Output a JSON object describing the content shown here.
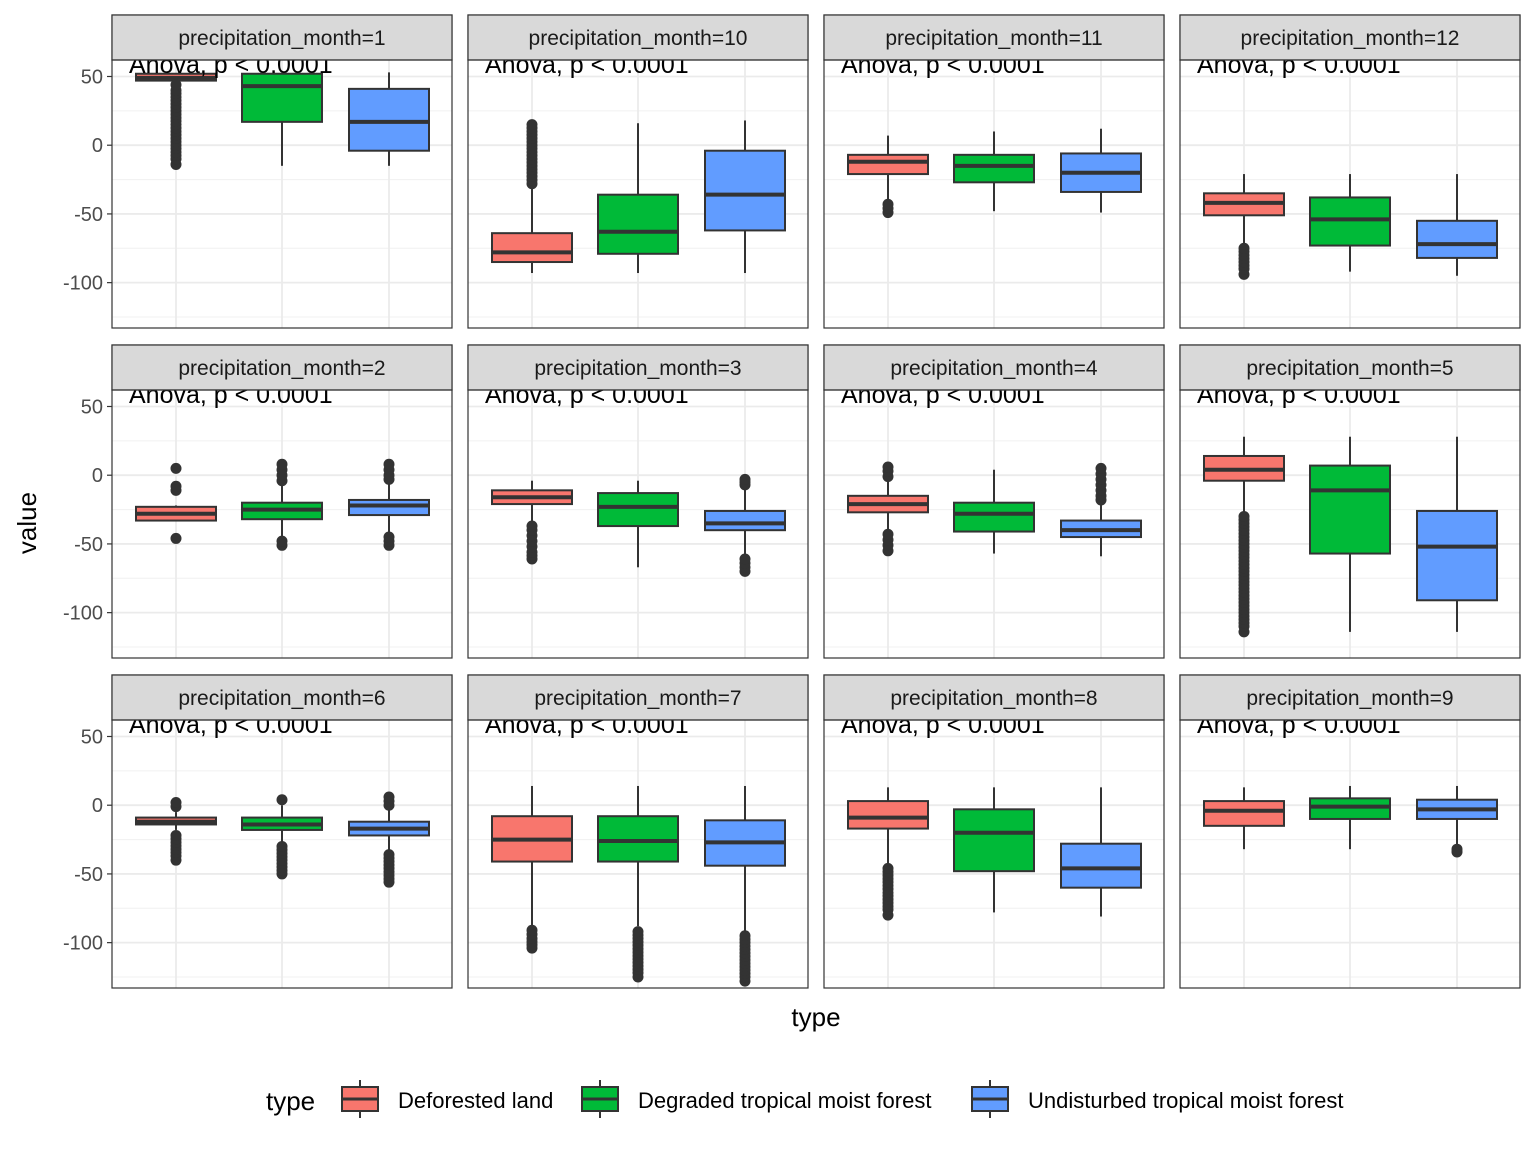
{
  "chart_data": {
    "type": "boxplot",
    "xlabel": "type",
    "ylabel": "value",
    "ylim": [
      -133,
      62
    ],
    "yticks": [
      50,
      0,
      -50,
      -100
    ],
    "x_tick_labels_shown": false,
    "grid": true,
    "annotation": "Anova, p < 0.0001",
    "legend": {
      "title": "type",
      "position": "bottom",
      "entries": [
        "Deforested land",
        "Degraded tropical moist forest",
        "Undisturbed tropical moist forest"
      ]
    },
    "series_colors": [
      "#F8766D",
      "#00BA38",
      "#619CFF"
    ],
    "facets": [
      {
        "label": "precipitation_month=1",
        "boxes": [
          {
            "type": "Deforested land",
            "whisker_low": 47,
            "q1": 47,
            "median": 49,
            "q3": 52,
            "whisker_high": 52,
            "outliers": [
              -14,
              -10,
              -5,
              0,
              5,
              10,
              15,
              20,
              25,
              30,
              35,
              40,
              44
            ]
          },
          {
            "type": "Degraded tropical moist forest",
            "whisker_low": -15,
            "q1": 17,
            "median": 43,
            "q3": 52,
            "whisker_high": 52,
            "outliers": []
          },
          {
            "type": "Undisturbed tropical moist forest",
            "whisker_low": -15,
            "q1": -4,
            "median": 17,
            "q3": 41,
            "whisker_high": 53,
            "outliers": []
          }
        ]
      },
      {
        "label": "precipitation_month=10",
        "boxes": [
          {
            "type": "Deforested land",
            "whisker_low": -93,
            "q1": -85,
            "median": -78,
            "q3": -64,
            "whisker_high": -29,
            "outliers": [
              -28,
              -20,
              -10,
              0,
              5,
              10,
              15
            ]
          },
          {
            "type": "Degraded tropical moist forest",
            "whisker_low": -93,
            "q1": -79,
            "median": -63,
            "q3": -36,
            "whisker_high": 16,
            "outliers": []
          },
          {
            "type": "Undisturbed tropical moist forest",
            "whisker_low": -93,
            "q1": -62,
            "median": -36,
            "q3": -4,
            "whisker_high": 18,
            "outliers": []
          }
        ]
      },
      {
        "label": "precipitation_month=11",
        "boxes": [
          {
            "type": "Deforested land",
            "whisker_low": -40,
            "q1": -21,
            "median": -12,
            "q3": -7,
            "whisker_high": 7,
            "outliers": [
              -43,
              -46,
              -49
            ]
          },
          {
            "type": "Degraded tropical moist forest",
            "whisker_low": -48,
            "q1": -27,
            "median": -15,
            "q3": -7,
            "whisker_high": 10,
            "outliers": []
          },
          {
            "type": "Undisturbed tropical moist forest",
            "whisker_low": -49,
            "q1": -34,
            "median": -20,
            "q3": -6,
            "whisker_high": 12,
            "outliers": []
          }
        ]
      },
      {
        "label": "precipitation_month=12",
        "boxes": [
          {
            "type": "Deforested land",
            "whisker_low": -73,
            "q1": -51,
            "median": -42,
            "q3": -35,
            "whisker_high": -21,
            "outliers": [
              -75,
              -80,
              -85,
              -90,
              -94
            ]
          },
          {
            "type": "Degraded tropical moist forest",
            "whisker_low": -92,
            "q1": -73,
            "median": -54,
            "q3": -38,
            "whisker_high": -21,
            "outliers": []
          },
          {
            "type": "Undisturbed tropical moist forest",
            "whisker_low": -95,
            "q1": -82,
            "median": -72,
            "q3": -55,
            "whisker_high": -21,
            "outliers": []
          }
        ]
      },
      {
        "label": "precipitation_month=2",
        "boxes": [
          {
            "type": "Deforested land",
            "whisker_low": -33,
            "q1": -33,
            "median": -28,
            "q3": -23,
            "whisker_high": -22,
            "outliers": [
              5,
              -8,
              -11,
              -46
            ]
          },
          {
            "type": "Degraded tropical moist forest",
            "whisker_low": -47,
            "q1": -32,
            "median": -25,
            "q3": -20,
            "whisker_high": -6,
            "outliers": [
              8,
              4,
              0,
              -4,
              -48,
              -51
            ]
          },
          {
            "type": "Undisturbed tropical moist forest",
            "whisker_low": -42,
            "q1": -29,
            "median": -22,
            "q3": -18,
            "whisker_high": -4,
            "outliers": [
              8,
              4,
              0,
              -3,
              -45,
              -48,
              -51
            ]
          }
        ]
      },
      {
        "label": "precipitation_month=3",
        "boxes": [
          {
            "type": "Deforested land",
            "whisker_low": -35,
            "q1": -21,
            "median": -16,
            "q3": -11,
            "whisker_high": -4,
            "outliers": [
              -37,
              -40,
              -44,
              -48,
              -52,
              -56,
              -61
            ]
          },
          {
            "type": "Degraded tropical moist forest",
            "whisker_low": -67,
            "q1": -37,
            "median": -23,
            "q3": -13,
            "whisker_high": -4,
            "outliers": []
          },
          {
            "type": "Undisturbed tropical moist forest",
            "whisker_low": -58,
            "q1": -40,
            "median": -35,
            "q3": -26,
            "whisker_high": -8,
            "outliers": [
              -3,
              -5,
              -7,
              -61,
              -64,
              -67,
              -70
            ]
          }
        ]
      },
      {
        "label": "precipitation_month=4",
        "boxes": [
          {
            "type": "Deforested land",
            "whisker_low": -40,
            "q1": -27,
            "median": -21,
            "q3": -15,
            "whisker_high": -3,
            "outliers": [
              6,
              3,
              -1,
              -43,
              -47,
              -51,
              -55
            ]
          },
          {
            "type": "Degraded tropical moist forest",
            "whisker_low": -57,
            "q1": -41,
            "median": -28,
            "q3": -20,
            "whisker_high": 4,
            "outliers": []
          },
          {
            "type": "Undisturbed tropical moist forest",
            "whisker_low": -59,
            "q1": -45,
            "median": -40,
            "q3": -33,
            "whisker_high": -21,
            "outliers": [
              5,
              1,
              -3,
              -7,
              -11,
              -15,
              -18
            ]
          }
        ]
      },
      {
        "label": "precipitation_month=5",
        "boxes": [
          {
            "type": "Deforested land",
            "whisker_low": -28,
            "q1": -4,
            "median": 4,
            "q3": 14,
            "whisker_high": 28,
            "outliers": [
              -30,
              -40,
              -50,
              -60,
              -70,
              -80,
              -90,
              -100,
              -110,
              -114
            ]
          },
          {
            "type": "Degraded tropical moist forest",
            "whisker_low": -114,
            "q1": -57,
            "median": -11,
            "q3": 7,
            "whisker_high": 28,
            "outliers": []
          },
          {
            "type": "Undisturbed tropical moist forest",
            "whisker_low": -114,
            "q1": -91,
            "median": -52,
            "q3": -26,
            "whisker_high": 28,
            "outliers": []
          }
        ]
      },
      {
        "label": "precipitation_month=6",
        "boxes": [
          {
            "type": "Deforested land",
            "whisker_low": -18,
            "q1": -14,
            "median": -12,
            "q3": -9,
            "whisker_high": -5,
            "outliers": [
              2,
              -1,
              -22,
              -27,
              -32,
              -37,
              -40
            ]
          },
          {
            "type": "Degraded tropical moist forest",
            "whisker_low": -27,
            "q1": -18,
            "median": -14,
            "q3": -9,
            "whisker_high": 0,
            "outliers": [
              4,
              -30,
              -35,
              -40,
              -45,
              -50
            ]
          },
          {
            "type": "Undisturbed tropical moist forest",
            "whisker_low": -33,
            "q1": -22,
            "median": -17,
            "q3": -12,
            "whisker_high": -1,
            "outliers": [
              6,
              3,
              0,
              -36,
              -41,
              -46,
              -51,
              -56
            ]
          }
        ]
      },
      {
        "label": "precipitation_month=7",
        "boxes": [
          {
            "type": "Deforested land",
            "whisker_low": -88,
            "q1": -41,
            "median": -25,
            "q3": -8,
            "whisker_high": 14,
            "outliers": [
              -91,
              -97,
              -104
            ]
          },
          {
            "type": "Degraded tropical moist forest",
            "whisker_low": -88,
            "q1": -41,
            "median": -26,
            "q3": -8,
            "whisker_high": 14,
            "outliers": [
              -92,
              -97,
              -102,
              -107,
              -112,
              -117,
              -122,
              -125
            ]
          },
          {
            "type": "Undisturbed tropical moist forest",
            "whisker_low": -92,
            "q1": -44,
            "median": -27,
            "q3": -11,
            "whisker_high": 14,
            "outliers": [
              -95,
              -100,
              -105,
              -110,
              -115,
              -120,
              -125,
              -128
            ]
          }
        ]
      },
      {
        "label": "precipitation_month=8",
        "boxes": [
          {
            "type": "Deforested land",
            "whisker_low": -43,
            "q1": -17,
            "median": -9,
            "q3": 3,
            "whisker_high": 13,
            "outliers": [
              -46,
              -51,
              -56,
              -61,
              -66,
              -71,
              -76,
              -80
            ]
          },
          {
            "type": "Degraded tropical moist forest",
            "whisker_low": -78,
            "q1": -48,
            "median": -20,
            "q3": -3,
            "whisker_high": 13,
            "outliers": []
          },
          {
            "type": "Undisturbed tropical moist forest",
            "whisker_low": -81,
            "q1": -60,
            "median": -46,
            "q3": -28,
            "whisker_high": 13,
            "outliers": []
          }
        ]
      },
      {
        "label": "precipitation_month=9",
        "boxes": [
          {
            "type": "Deforested land",
            "whisker_low": -32,
            "q1": -15,
            "median": -4,
            "q3": 3,
            "whisker_high": 13,
            "outliers": []
          },
          {
            "type": "Degraded tropical moist forest",
            "whisker_low": -32,
            "q1": -10,
            "median": -1,
            "q3": 5,
            "whisker_high": 14,
            "outliers": []
          },
          {
            "type": "Undisturbed tropical moist forest",
            "whisker_low": -30,
            "q1": -10,
            "median": -3,
            "q3": 4,
            "whisker_high": 14,
            "outliers": [
              -32,
              -34
            ]
          }
        ]
      }
    ]
  }
}
